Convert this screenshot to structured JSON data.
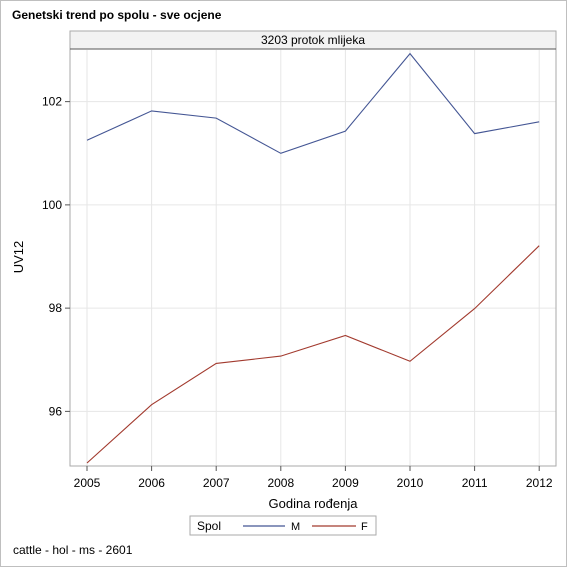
{
  "title": "Genetski trend po spolu - sve ocjene",
  "footnote": "cattle - hol - ms - 2601",
  "chart_data": {
    "type": "line",
    "panel_title": "3203 protok mlijeka",
    "xlabel": "Godina rođenja",
    "ylabel": "UV12",
    "x": [
      "2005",
      "2006",
      "2007",
      "2008",
      "2009",
      "2010",
      "2011",
      "2012"
    ],
    "y_ticks": [
      96,
      98,
      100,
      102
    ],
    "ylim": [
      95.0,
      103.0
    ],
    "grid": true,
    "legend": {
      "title": "Spol",
      "position": "bottom"
    },
    "series": [
      {
        "name": "M",
        "color": "#445694",
        "values": [
          101.25,
          101.82,
          101.68,
          101.0,
          101.43,
          102.93,
          101.38,
          101.61
        ]
      },
      {
        "name": "F",
        "color": "#a23a2e",
        "values": [
          95.0,
          96.13,
          96.93,
          97.07,
          97.47,
          96.97,
          97.99,
          99.21
        ]
      }
    ]
  }
}
